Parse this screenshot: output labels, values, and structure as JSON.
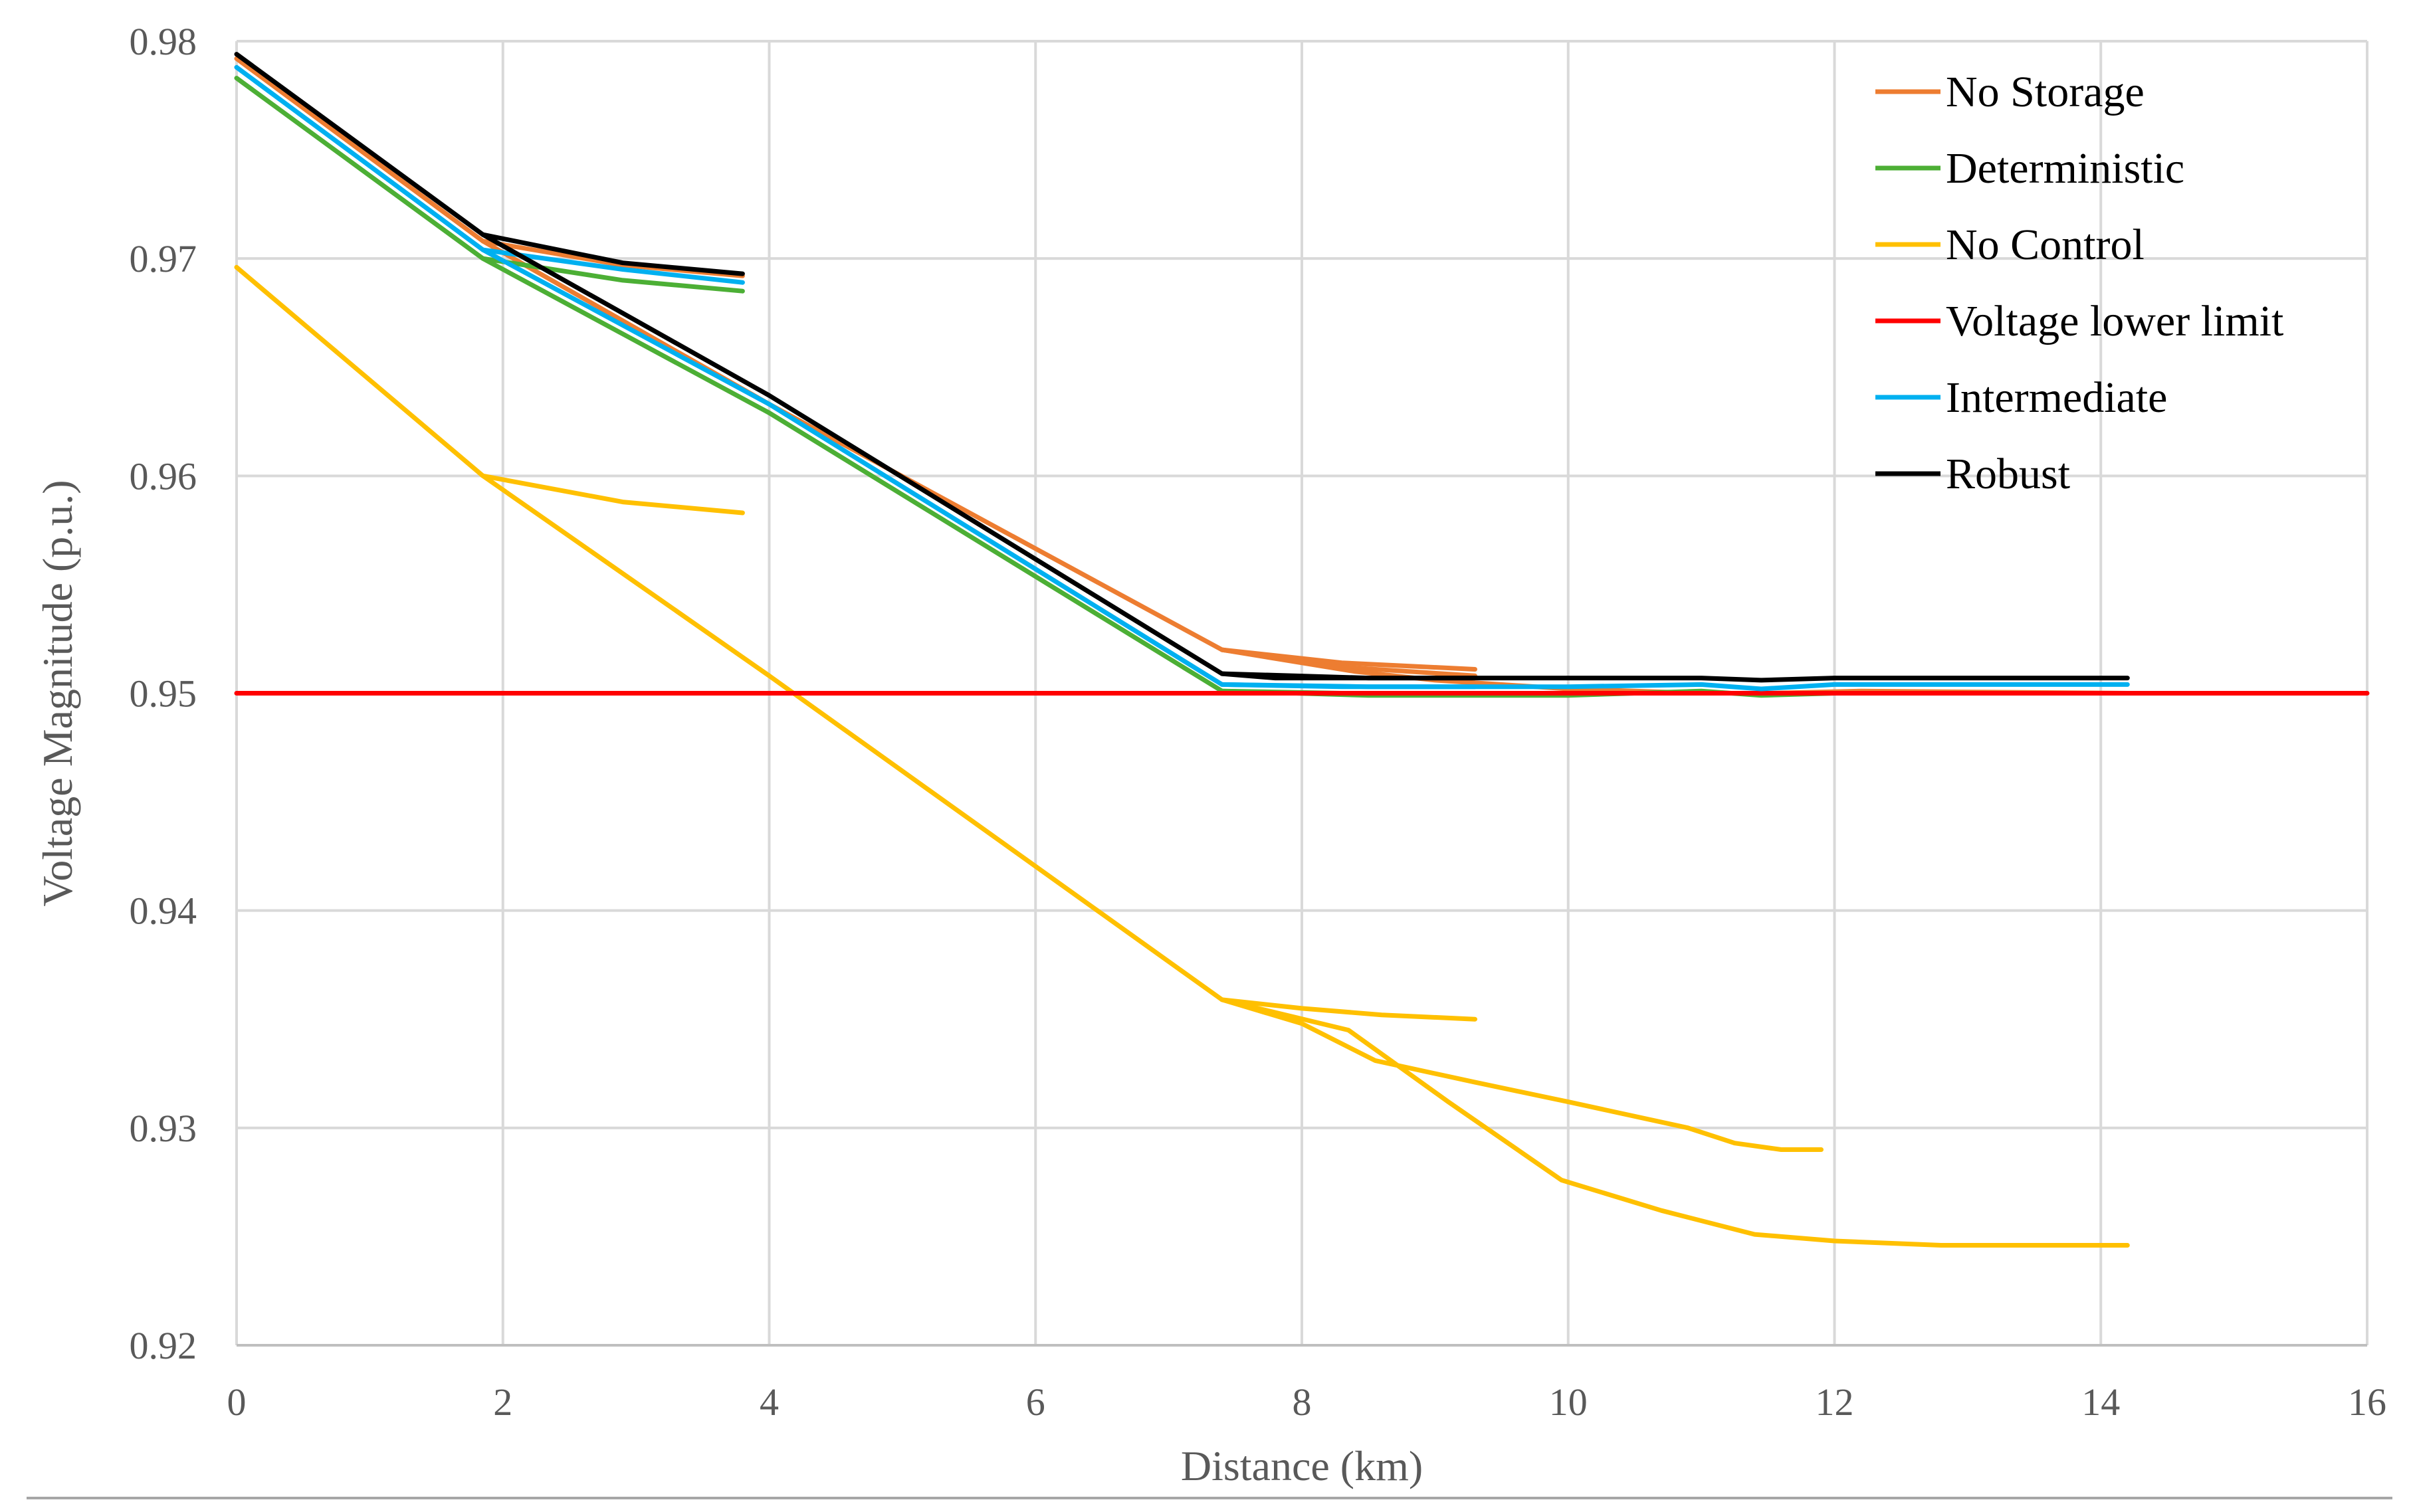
{
  "chart_data": {
    "type": "line",
    "title": "",
    "xlabel": "Distance (km)",
    "ylabel": "Voltage Magnitude (p.u.)",
    "xlim": [
      0,
      16
    ],
    "ylim": [
      0.92,
      0.98
    ],
    "grid": true,
    "legend_position": "top-right",
    "x_ticks": [
      "0",
      "2",
      "4",
      "6",
      "8",
      "10",
      "12",
      "14",
      "16"
    ],
    "y_ticks": [
      "0.92",
      "0.93",
      "0.94",
      "0.95",
      "0.96",
      "0.97",
      "0.98"
    ],
    "series": [
      {
        "name": "No Control",
        "color": "#FFC000",
        "segments": [
          [
            [
              0,
              0.9696
            ],
            [
              1.85,
              0.96
            ],
            [
              4.0,
              0.9508
            ],
            [
              7.4,
              0.9359
            ],
            [
              8.0,
              0.9348
            ],
            [
              8.55,
              0.9331
            ],
            [
              9.3,
              0.9321
            ],
            [
              10.0,
              0.9312
            ],
            [
              10.9,
              0.93
            ],
            [
              11.25,
              0.9293
            ],
            [
              11.6,
              0.929
            ],
            [
              11.9,
              0.929
            ]
          ],
          [
            [
              1.85,
              0.96
            ],
            [
              2.9,
              0.9588
            ],
            [
              3.8,
              0.9583
            ]
          ],
          [
            [
              7.4,
              0.9359
            ],
            [
              8.0,
              0.9355
            ],
            [
              8.6,
              0.9352
            ],
            [
              9.3,
              0.935
            ]
          ],
          [
            [
              7.4,
              0.9359
            ],
            [
              8.35,
              0.9345
            ],
            [
              9.1,
              0.9312
            ],
            [
              9.95,
              0.9276
            ],
            [
              10.7,
              0.9262
            ],
            [
              11.4,
              0.9251
            ],
            [
              12.0,
              0.9248
            ],
            [
              12.8,
              0.9246
            ],
            [
              14.2,
              0.9246
            ]
          ]
        ]
      },
      {
        "name": "No Storage",
        "color": "#ED7D31",
        "segments": [
          [
            [
              0,
              0.9792
            ],
            [
              1.85,
              0.9708
            ],
            [
              4.0,
              0.9633
            ],
            [
              7.4,
              0.952
            ],
            [
              8.3,
              0.9512
            ],
            [
              9.3,
              0.9508
            ]
          ],
          [
            [
              1.85,
              0.9708
            ],
            [
              2.9,
              0.9697
            ],
            [
              3.8,
              0.9692
            ]
          ],
          [
            [
              7.4,
              0.952
            ],
            [
              8.3,
              0.9514
            ],
            [
              9.3,
              0.9511
            ]
          ],
          [
            [
              7.4,
              0.952
            ],
            [
              8.4,
              0.951
            ],
            [
              9.0,
              0.9506
            ],
            [
              10.0,
              0.9502
            ],
            [
              11.0,
              0.95
            ],
            [
              11.5,
              0.95
            ],
            [
              12.2,
              0.9501
            ],
            [
              14.2,
              0.95
            ]
          ]
        ]
      },
      {
        "name": "Deterministic",
        "color": "#4CAF35",
        "segments": [
          [
            [
              0,
              0.9783
            ],
            [
              1.85,
              0.97
            ],
            [
              4.0,
              0.9629
            ],
            [
              7.4,
              0.9501
            ],
            [
              8.3,
              0.95
            ],
            [
              9.3,
              0.95
            ]
          ],
          [
            [
              1.85,
              0.97
            ],
            [
              2.9,
              0.969
            ],
            [
              3.8,
              0.9685
            ]
          ],
          [
            [
              7.4,
              0.9501
            ],
            [
              8.5,
              0.9499
            ],
            [
              10.0,
              0.9499
            ],
            [
              11.0,
              0.9501
            ],
            [
              11.45,
              0.9499
            ],
            [
              12.0,
              0.95
            ],
            [
              14.2,
              0.95
            ]
          ]
        ]
      },
      {
        "name": "Voltage lower limit",
        "color": "#FF0000",
        "segments": [
          [
            [
              0,
              0.95
            ],
            [
              16,
              0.95
            ]
          ]
        ]
      },
      {
        "name": "Intermediate",
        "color": "#00B0F0",
        "segments": [
          [
            [
              0,
              0.9788
            ],
            [
              1.85,
              0.9704
            ],
            [
              4.0,
              0.9633
            ],
            [
              7.4,
              0.9504
            ],
            [
              8.3,
              0.9503
            ],
            [
              9.3,
              0.9503
            ]
          ],
          [
            [
              1.85,
              0.9704
            ],
            [
              2.9,
              0.9695
            ],
            [
              3.8,
              0.9689
            ]
          ],
          [
            [
              7.4,
              0.9504
            ],
            [
              8.5,
              0.9503
            ],
            [
              10.0,
              0.9503
            ],
            [
              11.0,
              0.9504
            ],
            [
              11.45,
              0.9502
            ],
            [
              12.0,
              0.9504
            ],
            [
              14.2,
              0.9504
            ]
          ]
        ]
      },
      {
        "name": "Robust",
        "color": "#000000",
        "segments": [
          [
            [
              0,
              0.9794
            ],
            [
              1.85,
              0.9711
            ],
            [
              4.0,
              0.9637
            ],
            [
              7.4,
              0.9509
            ],
            [
              7.8,
              0.9507
            ],
            [
              9.3,
              0.9507
            ]
          ],
          [
            [
              1.85,
              0.9711
            ],
            [
              2.9,
              0.9698
            ],
            [
              3.8,
              0.9693
            ]
          ],
          [
            [
              7.4,
              0.9509
            ],
            [
              8.5,
              0.9507
            ],
            [
              10.0,
              0.9507
            ],
            [
              11.0,
              0.9507
            ],
            [
              11.45,
              0.9506
            ],
            [
              12.0,
              0.9507
            ],
            [
              14.2,
              0.9507
            ]
          ]
        ]
      }
    ],
    "legend_order": [
      "No Storage",
      "Deterministic",
      "No Control",
      "Voltage lower limit",
      "Intermediate",
      "Robust"
    ]
  }
}
